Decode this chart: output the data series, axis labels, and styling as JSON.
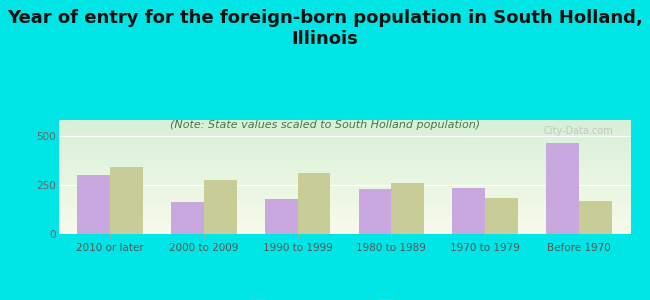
{
  "title": "Year of entry for the foreign-born population in South Holland,\nIllinois",
  "subtitle": "(Note: State values scaled to South Holland population)",
  "categories": [
    "2010 or later",
    "2000 to 2009",
    "1990 to 1999",
    "1980 to 1989",
    "1970 to 1979",
    "Before 1970"
  ],
  "south_holland": [
    300,
    165,
    180,
    230,
    235,
    465
  ],
  "illinois": [
    340,
    275,
    310,
    260,
    185,
    170
  ],
  "bar_color_sh": "#c9a8e0",
  "bar_color_il": "#c8cc96",
  "background_color": "#00e5e5",
  "ylabel_ticks": [
    0,
    250,
    500
  ],
  "ylim": [
    0,
    580
  ],
  "title_fontsize": 13,
  "subtitle_fontsize": 8,
  "tick_fontsize": 7.5,
  "legend_fontsize": 9,
  "bar_width": 0.35,
  "watermark": "City-Data.com"
}
